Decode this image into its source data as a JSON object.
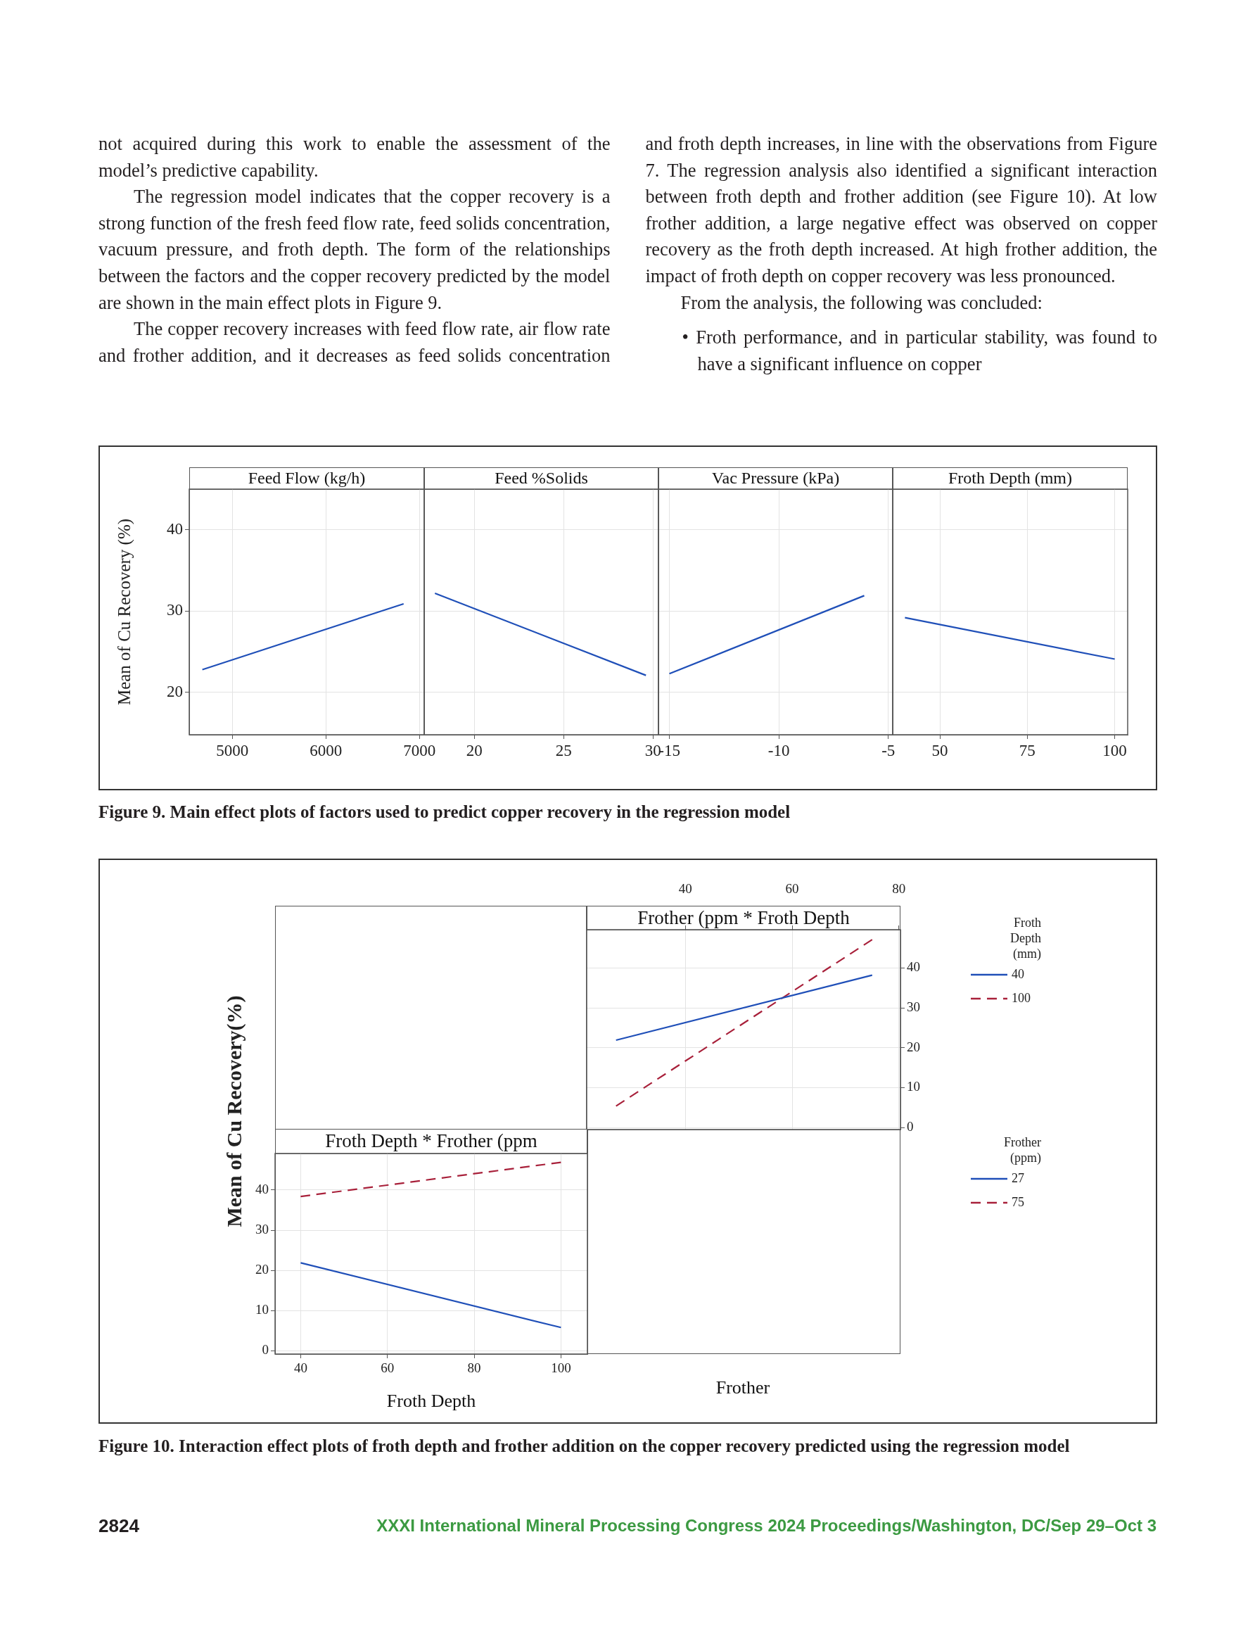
{
  "chart_data": [
    {
      "type": "line",
      "title": "Feed Flow (kg/h)",
      "ylabel": "Mean of Cu Recovery (%)",
      "annotations": [
        "not acquired during this work to enable the assessment of the model’s predictive capability.",
        "The regression model indicates that the copper recovery is a strong function of the fresh feed flow rate, feed solids concentration, vacuum pressure, and froth depth. The form of the relationships between the factors and the copper recovery predicted by the model are shown in the main effect plots in Figure 9.",
        "The copper recovery increases with feed flow rate, air flow rate and frother addition, and it decreases as feed solids concentration and froth depth increases, in line with the observations from Figure 7. The regression analysis also identified a significant interaction between froth depth and frother addition (see Figure 10). At low frother addition, a large negative effect was observed on copper recovery as the froth depth increased. At high frother addition, the impact of froth depth on copper recovery was less pronounced.",
        "From the analysis, the following was concluded:",
        "• Froth performance, and in particular stability, was found to have a significant influence on copper",
        "Figure 9. Main effect plots of factors used to predict copper recovery in the regression model"
      ],
      "series": [
        {
          "color": "#1f4fb8",
          "x": [
            4680,
            6830
          ],
          "values": [
            22.8,
            30.9
          ]
        }
      ],
      "xlim": [
        4540,
        7050
      ],
      "xticks": [
        5000,
        6000,
        7000
      ],
      "ylim": [
        14.8,
        45
      ],
      "yticks": [
        20,
        30,
        40
      ],
      "grid": true
    },
    {
      "type": "line",
      "title": "Feed %Solids",
      "series": [
        {
          "color": "#1f4fb8",
          "x": [
            17.8,
            29.6
          ],
          "values": [
            32.2,
            22.1
          ]
        }
      ],
      "xlim": [
        17.2,
        30.3
      ],
      "xticks": [
        20,
        25,
        30
      ],
      "ylim": [
        14.8,
        45
      ],
      "yticks": [
        20,
        30,
        40
      ],
      "grid": true,
      "tick_labels": "x"
    },
    {
      "type": "line",
      "title": "Vac Pressure (kPa)",
      "series": [
        {
          "color": "#1f4fb8",
          "x": [
            -15,
            -6.1
          ],
          "values": [
            22.3,
            31.9
          ]
        }
      ],
      "xlim": [
        -15.5,
        -4.8
      ],
      "xticks": [
        -15,
        -10,
        -5
      ],
      "ylim": [
        14.8,
        45
      ],
      "yticks": [
        20,
        30,
        40
      ],
      "grid": true,
      "tick_labels": "x"
    },
    {
      "type": "line",
      "title": "Froth Depth (mm)",
      "series": [
        {
          "color": "#1f4fb8",
          "x": [
            40,
            100
          ],
          "values": [
            29.2,
            24.1
          ]
        }
      ],
      "xlim": [
        36.5,
        103.7
      ],
      "xticks": [
        50,
        75,
        100
      ],
      "ylim": [
        14.8,
        45
      ],
      "yticks": [
        20,
        30,
        40
      ],
      "grid": true,
      "tick_labels": "x"
    },
    {
      "type": "line",
      "title": "Frother (ppm * Froth Depth",
      "xlabel": "Frother",
      "legend_title": "Froth Depth (mm)",
      "legend": "right",
      "series": [
        {
          "name": "40",
          "color": "#1f4fb8",
          "line_style": "solid",
          "x": [
            27,
            75
          ],
          "values": [
            21.9,
            38.2
          ]
        },
        {
          "name": "100",
          "color": "#a8203a",
          "line_style": "dashed",
          "x": [
            27,
            75
          ],
          "values": [
            5.4,
            47.1
          ]
        }
      ],
      "xlim": [
        21.5,
        80.3
      ],
      "xticks": [
        40,
        60,
        80
      ],
      "ylim": [
        -0.5,
        49.6
      ],
      "yticks": [
        0,
        10,
        20,
        30,
        40
      ],
      "grid": true
    },
    {
      "type": "line",
      "title": "Froth Depth * Frother (ppm",
      "xlabel": "Froth Depth",
      "ylabel": "Mean of Cu Recovery(%)",
      "legend_title": "Frother (ppm)",
      "legend": "right",
      "annotations": [
        "Figure 10.  Interaction effect plots of froth depth and frother addition on the copper recovery predicted using the regression model",
        "2824",
        "XXXI International Mineral Processing Congress 2024 Proceedings/Washington, DC/Sep 29–Oct 3"
      ],
      "series": [
        {
          "name": "27",
          "color": "#1f4fb8",
          "line_style": "solid",
          "x": [
            40,
            100
          ],
          "values": [
            21.9,
            5.8
          ]
        },
        {
          "name": "75",
          "color": "#a8203a",
          "line_style": "dashed",
          "x": [
            40,
            100
          ],
          "values": [
            38.4,
            46.9
          ]
        }
      ],
      "xlim": [
        34.1,
        106.1
      ],
      "xticks": [
        40,
        60,
        80,
        100
      ],
      "ylim": [
        -0.8,
        49.1
      ],
      "yticks": [
        0,
        10,
        20,
        30,
        40
      ],
      "grid": true
    }
  ]
}
